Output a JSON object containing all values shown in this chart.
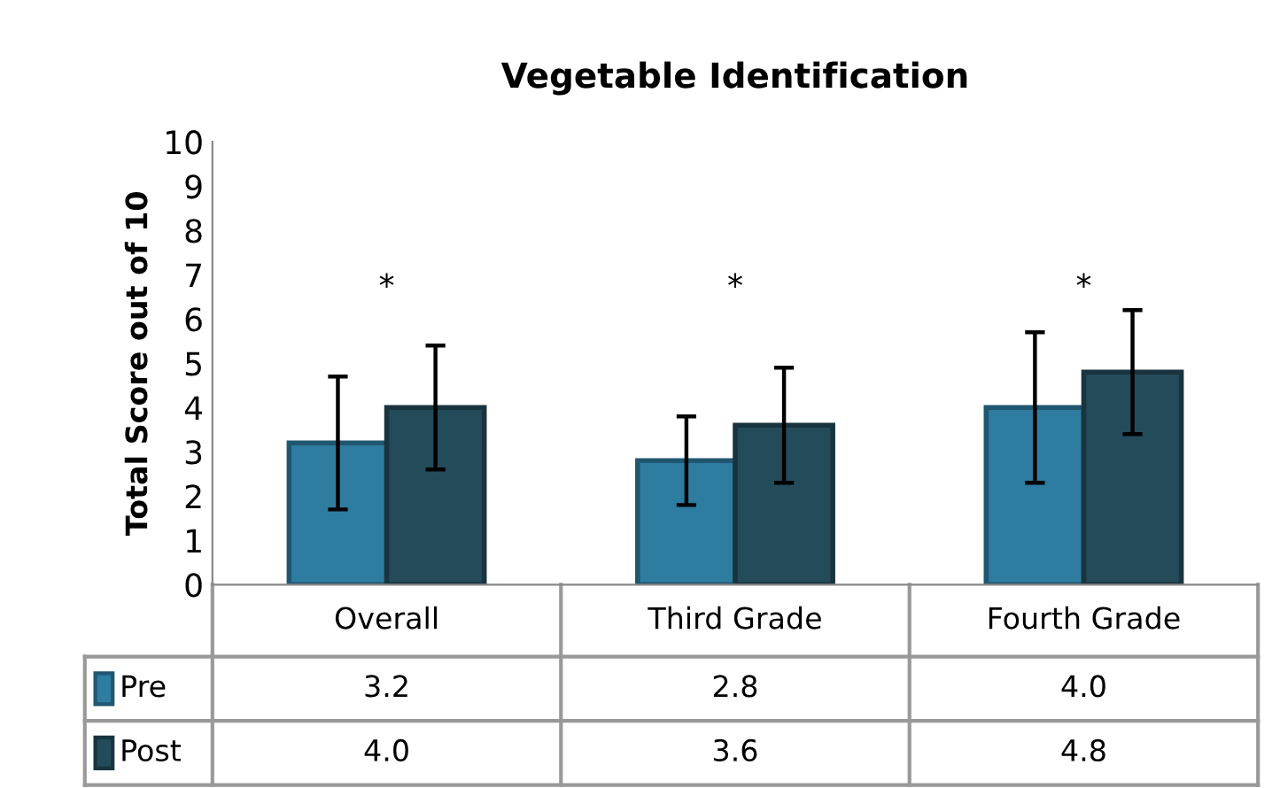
{
  "chart_data": {
    "type": "bar",
    "title": "Vegetable Identification",
    "ylabel": "Total Score out of 10",
    "categories": [
      "Overall",
      "Third Grade",
      "Fourth Grade"
    ],
    "series": [
      {
        "name": "Pre",
        "color": "#2e7ca0",
        "values": [
          3.2,
          2.8,
          4.0
        ],
        "errors": [
          1.5,
          1.0,
          1.7
        ],
        "value_labels": [
          "3.2",
          "2.8",
          "4.0"
        ]
      },
      {
        "name": "Post",
        "color": "#244b5a",
        "values": [
          4.0,
          3.6,
          4.8
        ],
        "errors": [
          1.4,
          1.3,
          1.4
        ],
        "value_labels": [
          "4.0",
          "3.6",
          "4.8"
        ]
      }
    ],
    "ylim": [
      0,
      10
    ],
    "yticks": [
      0,
      1,
      2,
      3,
      4,
      5,
      6,
      7,
      8,
      9,
      10
    ],
    "grid": false,
    "legend": "bottom left",
    "annotations": [
      "*",
      "*",
      "*"
    ]
  }
}
